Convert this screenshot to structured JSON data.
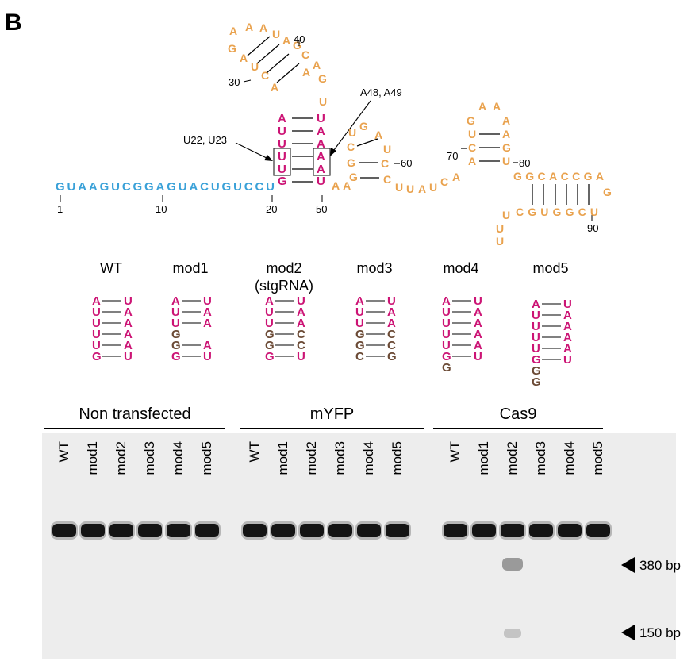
{
  "panel_label": "B",
  "colors": {
    "orange": "#e9a24e",
    "magenta": "#cc1475",
    "blue": "#3aa1d8",
    "brown": "#6b4a35",
    "gel_bg": "#eeeeee"
  },
  "sequence": {
    "five_prime": "GUAAGUCGGAGUACUGUCCU",
    "tick_1": "1",
    "tick_10": "10",
    "tick_20": "20",
    "tick_50": "50",
    "num_30": "30",
    "num_40": "40",
    "num_60": "60",
    "num_70": "70",
    "num_80": "80",
    "num_90": "90",
    "annot_u": "U22, U23",
    "annot_a": "A48, A49",
    "linker": "UUAUCA",
    "aa_link": "AA",
    "hp2_top": "GGCACCGA",
    "hp2_bot": "CGUGGCU",
    "hp2_loop_g": "G",
    "tail": "UUU"
  },
  "variants": [
    {
      "name": "WT",
      "sub": "",
      "left": [
        "A",
        "U",
        "U",
        "U",
        "U",
        "G"
      ],
      "right": [
        "U",
        "A",
        "A",
        "A",
        "A",
        "U"
      ],
      "extra": []
    },
    {
      "name": "mod1",
      "sub": "",
      "left": [
        "A",
        "U",
        "U",
        "G",
        "G",
        "G"
      ],
      "right": [
        "U",
        "A",
        "A",
        "",
        "A",
        "U"
      ],
      "extra": []
    },
    {
      "name": "mod2",
      "sub": "(stgRNA)",
      "left": [
        "A",
        "U",
        "U",
        "G",
        "G",
        "G"
      ],
      "right": [
        "U",
        "A",
        "A",
        "C",
        "C",
        "U"
      ],
      "extra": []
    },
    {
      "name": "mod3",
      "sub": "",
      "left": [
        "A",
        "U",
        "U",
        "G",
        "G",
        "C"
      ],
      "right": [
        "U",
        "A",
        "A",
        "C",
        "C",
        "G"
      ],
      "extra": []
    },
    {
      "name": "mod4",
      "sub": "",
      "left": [
        "A",
        "U",
        "U",
        "U",
        "U",
        "G"
      ],
      "right": [
        "U",
        "A",
        "A",
        "A",
        "A",
        "U"
      ],
      "extra": [
        "G"
      ]
    },
    {
      "name": "mod5",
      "sub": "",
      "left": [
        "A",
        "U",
        "U",
        "U",
        "U",
        "G"
      ],
      "right": [
        "U",
        "A",
        "A",
        "A",
        "A",
        "U"
      ],
      "extra": [
        "G",
        "G"
      ]
    }
  ],
  "gel": {
    "groups": [
      {
        "label": "Non transfected",
        "lanes": [
          "WT",
          "mod1",
          "mod2",
          "mod3",
          "mod4",
          "mod5"
        ]
      },
      {
        "label": "mYFP",
        "lanes": [
          "WT",
          "mod1",
          "mod2",
          "mod3",
          "mod4",
          "mod5"
        ]
      },
      {
        "label": "Cas9",
        "lanes": [
          "WT",
          "mod1",
          "mod2",
          "mod3",
          "mod4",
          "mod5"
        ]
      }
    ],
    "markers": [
      "380 bp",
      "150 bp"
    ]
  }
}
